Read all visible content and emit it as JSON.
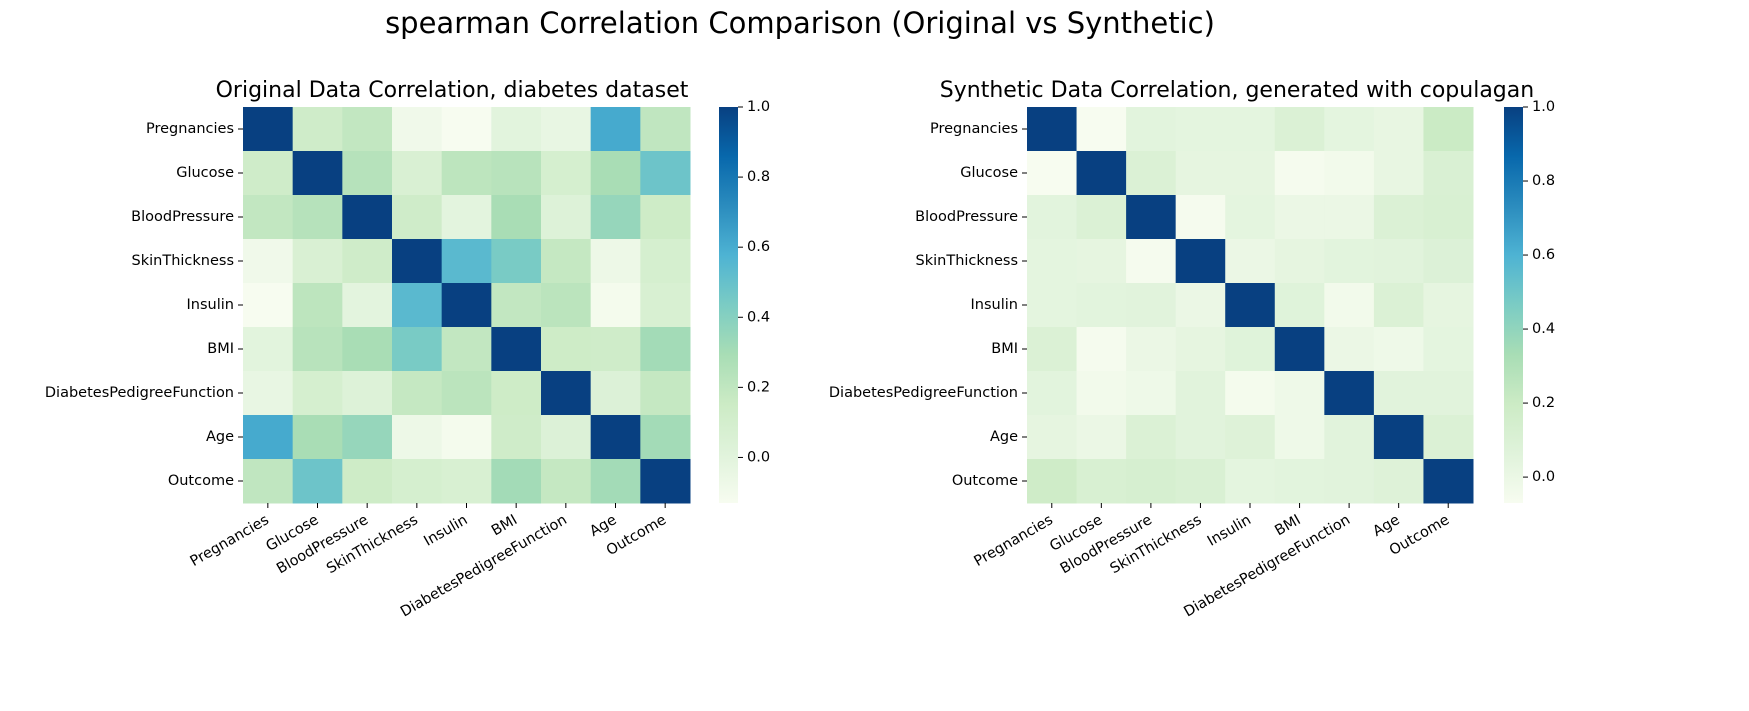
{
  "figure": {
    "title": "spearman Correlation Comparison (Original vs Synthetic)"
  },
  "chart_data": [
    {
      "type": "heatmap",
      "title": "Original Data Correlation, diabetes dataset",
      "colormap": "GnBu",
      "labels": [
        "Pregnancies",
        "Glucose",
        "BloodPressure",
        "SkinThickness",
        "Insulin",
        "BMI",
        "DiabetesPedigreeFunction",
        "Age",
        "Outcome"
      ],
      "values": [
        [
          1,
          0.13,
          0.19,
          -0.09,
          -0.13,
          0.0,
          -0.04,
          0.61,
          0.2
        ],
        [
          0.13,
          1,
          0.24,
          0.06,
          0.21,
          0.23,
          0.09,
          0.29,
          0.48
        ],
        [
          0.19,
          0.24,
          1,
          0.13,
          -0.01,
          0.29,
          0.03,
          0.35,
          0.14
        ],
        [
          -0.09,
          0.06,
          0.13,
          1,
          0.54,
          0.44,
          0.18,
          -0.07,
          0.09
        ],
        [
          -0.13,
          0.21,
          -0.01,
          0.54,
          1,
          0.19,
          0.22,
          -0.11,
          0.07
        ],
        [
          0.0,
          0.23,
          0.29,
          0.44,
          0.19,
          1,
          0.14,
          0.13,
          0.31
        ],
        [
          -0.04,
          0.09,
          0.03,
          0.18,
          0.22,
          0.14,
          1,
          0.04,
          0.18
        ],
        [
          0.61,
          0.29,
          0.35,
          -0.07,
          -0.11,
          0.13,
          0.04,
          1,
          0.31
        ],
        [
          0.2,
          0.48,
          0.14,
          0.09,
          0.07,
          0.31,
          0.18,
          0.31,
          1
        ]
      ],
      "zlim": [
        -0.13,
        1
      ],
      "zticks": [
        0.0,
        0.2,
        0.4,
        0.6,
        0.8,
        1.0
      ]
    },
    {
      "type": "heatmap",
      "title": "Synthetic Data Correlation, generated with copulagan",
      "colormap": "GnBu",
      "labels": [
        "Pregnancies",
        "Glucose",
        "BloodPressure",
        "SkinThickness",
        "Insulin",
        "BMI",
        "DiabetesPedigreeFunction",
        "Age",
        "Outcome"
      ],
      "values": [
        [
          1,
          -0.07,
          0.05,
          0.04,
          0.04,
          0.1,
          0.04,
          0.02,
          0.2
        ],
        [
          -0.07,
          1,
          0.1,
          0.03,
          0.03,
          -0.06,
          -0.04,
          0.02,
          0.11
        ],
        [
          0.05,
          0.1,
          1,
          -0.06,
          0.04,
          0.0,
          0.0,
          0.1,
          0.12
        ],
        [
          0.04,
          0.03,
          -0.06,
          1,
          0.0,
          0.03,
          0.05,
          0.06,
          0.09
        ],
        [
          0.04,
          0.05,
          0.06,
          0.0,
          1,
          0.07,
          -0.04,
          0.1,
          0.03
        ],
        [
          0.1,
          -0.06,
          0.0,
          0.03,
          0.07,
          1,
          0.0,
          -0.02,
          0.04
        ],
        [
          0.05,
          -0.04,
          -0.02,
          0.06,
          -0.05,
          -0.02,
          1,
          0.06,
          0.06
        ],
        [
          0.03,
          0.0,
          0.1,
          0.06,
          0.08,
          -0.02,
          0.06,
          1,
          0.1
        ],
        [
          0.18,
          0.12,
          0.13,
          0.11,
          0.04,
          0.05,
          0.06,
          0.08,
          1
        ]
      ],
      "zlim": [
        -0.07,
        1
      ],
      "zticks": [
        0.0,
        0.2,
        0.4,
        0.6,
        0.8,
        1.0
      ]
    }
  ]
}
